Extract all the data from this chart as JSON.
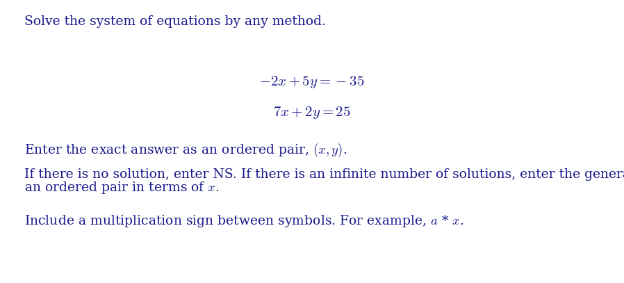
{
  "background_color": "#ffffff",
  "title_text": "Solve the system of equations by any method.",
  "eq1": "$-2x + 5y = -35$",
  "eq2": "$7x + 2y = 25$",
  "line3_plain": "Enter the exact answer as an ordered pair, ",
  "line3_math": "$(x, y)$.",
  "line4": "If there is no solution, enter NS. If there is an infinite number of solutions, enter the general solution as",
  "line5_plain": "an ordered pair in terms of ",
  "line5_math": "$x$.",
  "line6_plain": "Include a multiplication sign between symbols. For example, ",
  "line6_math": "$a$ * $x$.",
  "text_color": "#1a1a8c",
  "font_size_title": 13.5,
  "font_size_eq": 15,
  "font_size_body": 13.5,
  "fig_width": 8.98,
  "fig_height": 4.07,
  "dpi": 100
}
